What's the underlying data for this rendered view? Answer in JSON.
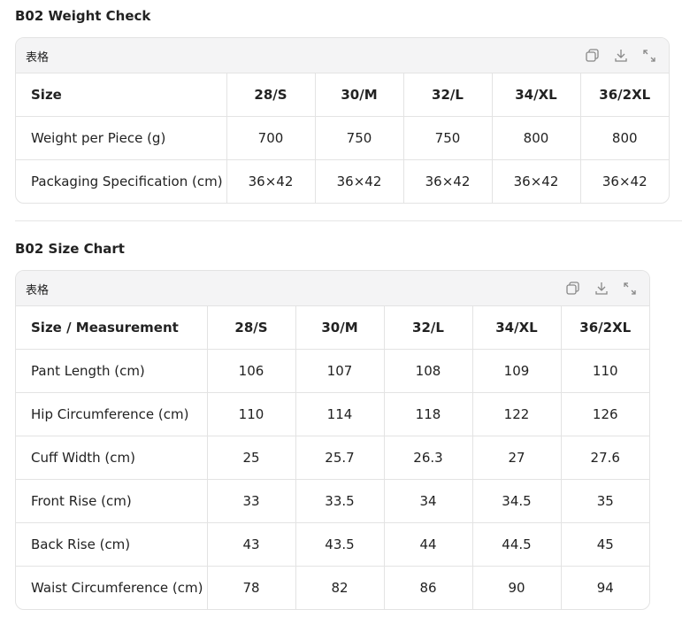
{
  "sections": [
    {
      "title": "B02 Weight Check",
      "label": "表格",
      "table": {
        "header": [
          "Size",
          "28/S",
          "30/M",
          "32/L",
          "34/XL",
          "36/2XL"
        ],
        "rows": [
          [
            "Weight per Piece (g)",
            "700",
            "750",
            "750",
            "800",
            "800"
          ],
          [
            "Packaging Specification (cm)",
            "36×42",
            "36×42",
            "36×42",
            "36×42",
            "36×42"
          ]
        ]
      }
    },
    {
      "title": "B02 Size Chart",
      "label": "表格",
      "table": {
        "header": [
          "Size / Measurement",
          "28/S",
          "30/M",
          "32/L",
          "34/XL",
          "36/2XL"
        ],
        "rows": [
          [
            "Pant Length (cm)",
            "106",
            "107",
            "108",
            "109",
            "110"
          ],
          [
            "Hip Circumference (cm)",
            "110",
            "114",
            "118",
            "122",
            "126"
          ],
          [
            "Cuff Width (cm)",
            "25",
            "25.7",
            "26.3",
            "27",
            "27.6"
          ],
          [
            "Front Rise (cm)",
            "33",
            "33.5",
            "34",
            "34.5",
            "35"
          ],
          [
            "Back Rise (cm)",
            "43",
            "43.5",
            "44",
            "44.5",
            "45"
          ],
          [
            "Waist Circumference (cm)",
            "78",
            "82",
            "86",
            "90",
            "94"
          ]
        ]
      }
    }
  ]
}
